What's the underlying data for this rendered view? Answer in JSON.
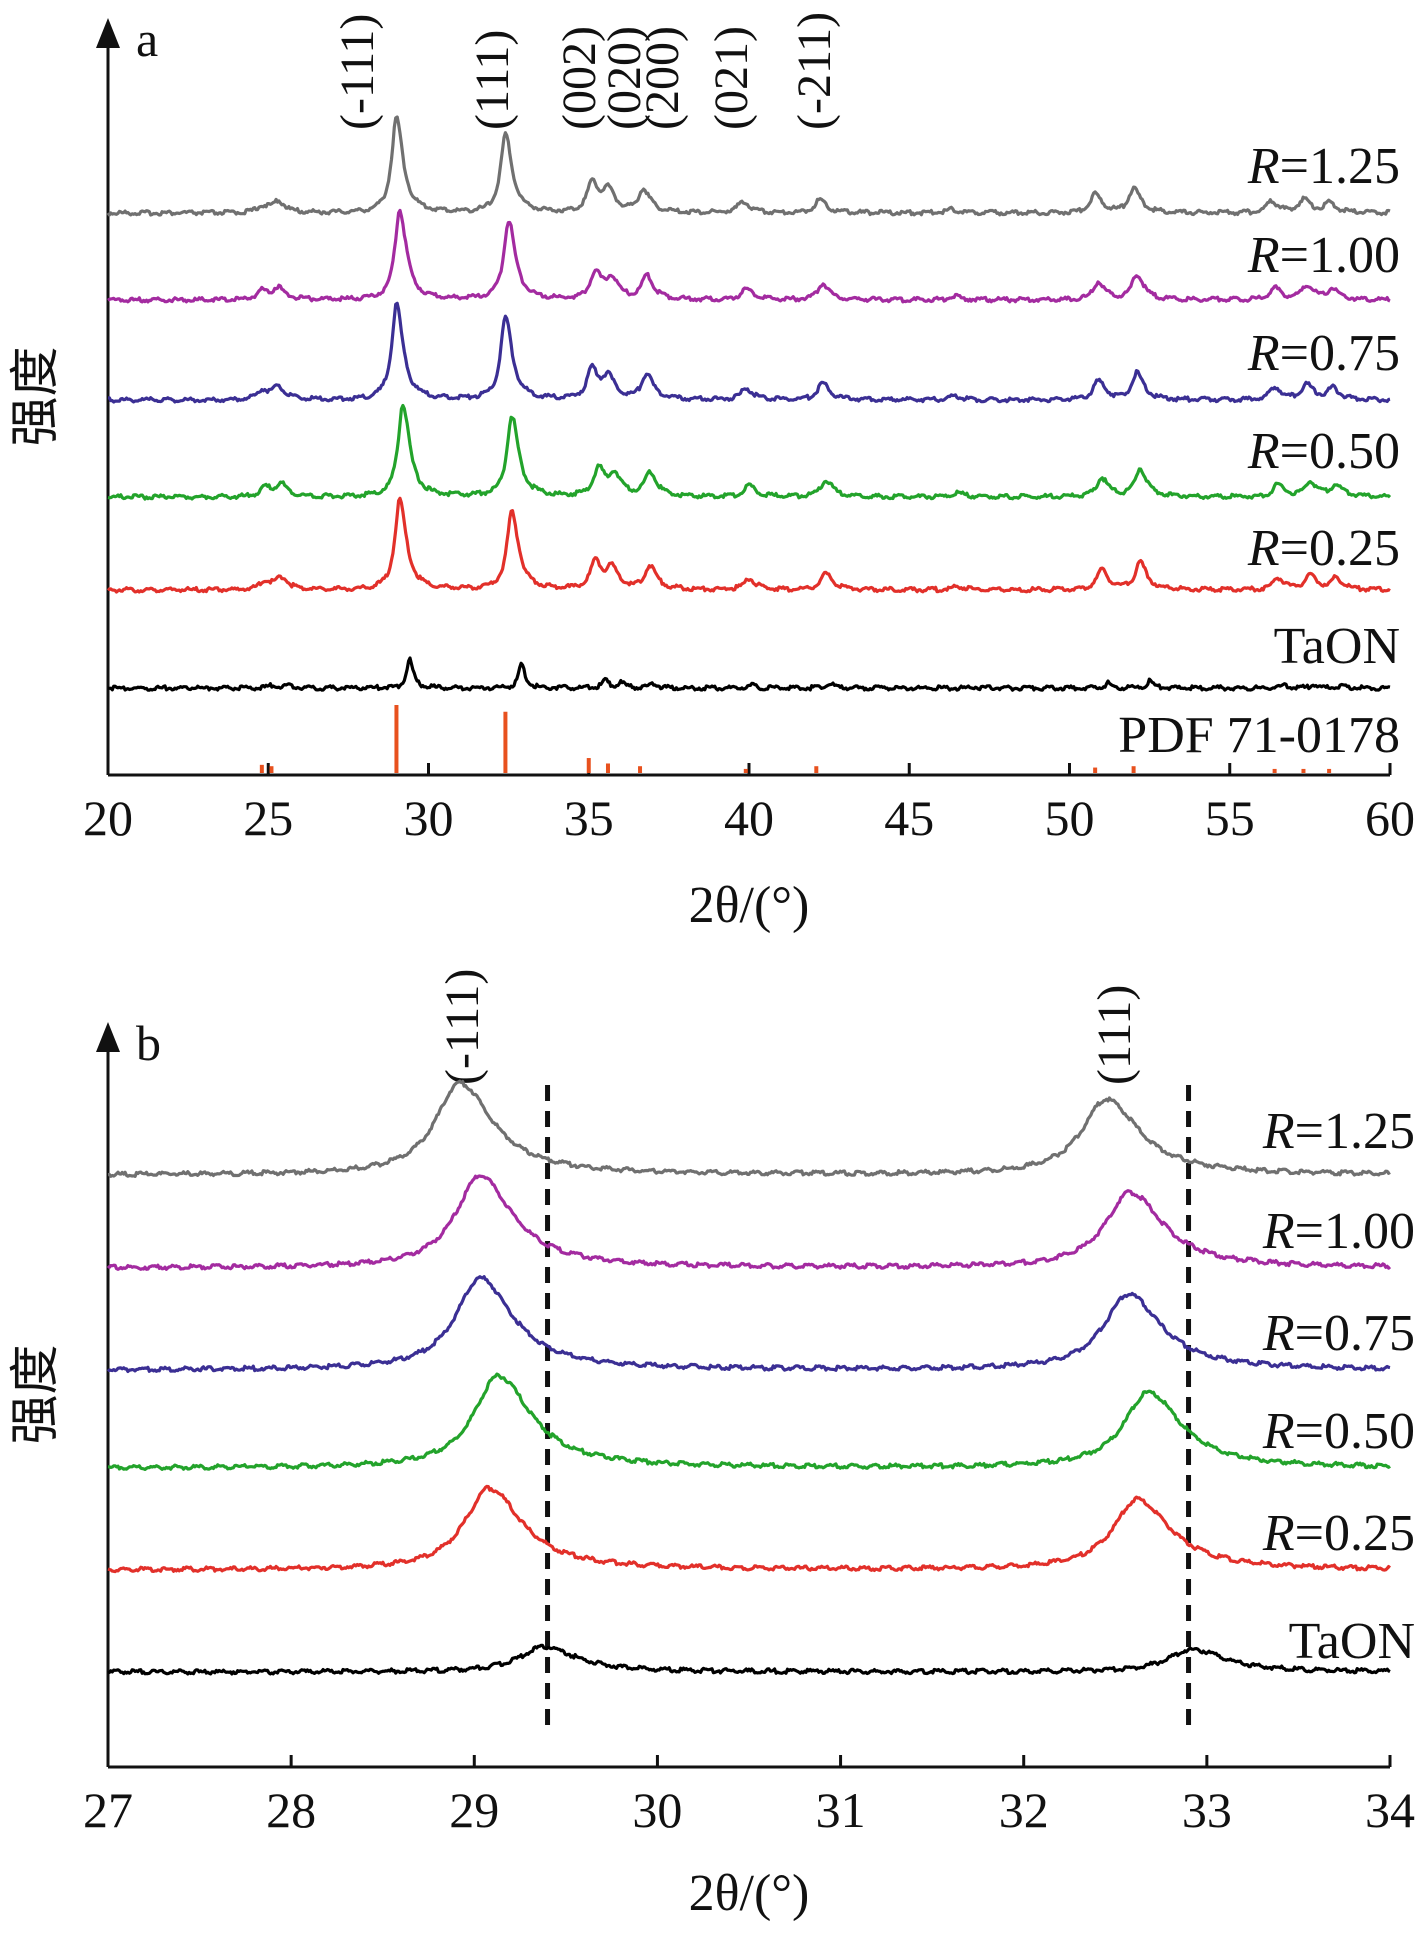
{
  "chart_data": [
    {
      "type": "line",
      "panel_label": "a",
      "xlabel": "2θ/(°)",
      "ylabel": "强度",
      "xlim": [
        20,
        60
      ],
      "xticks": [
        20,
        25,
        30,
        35,
        40,
        45,
        50,
        55,
        60
      ],
      "xtick_labels": [
        "20",
        "25",
        "30",
        "35",
        "40",
        "45",
        "50",
        "55",
        "60"
      ],
      "grid": false,
      "reflections": [
        {
          "label": "(-111)",
          "x": 29.0
        },
        {
          "label": "(111)",
          "x": 32.4
        },
        {
          "label": "(002)",
          "x": 35.1
        },
        {
          "label": "(020)",
          "x": 35.6
        },
        {
          "label": "(200)",
          "x": 36.7
        },
        {
          "label": "(021)",
          "x": 39.9
        },
        {
          "label": "(-211)",
          "x": 42.2
        }
      ],
      "series": [
        {
          "name": "R=1.25",
          "prefix": "R",
          "suffix": "=1.25",
          "color": "#707070",
          "peaks": [
            [
              24.8,
              0.07
            ],
            [
              25.3,
              0.12
            ],
            [
              29.0,
              1.0
            ],
            [
              32.4,
              0.82
            ],
            [
              35.1,
              0.32
            ],
            [
              35.6,
              0.22
            ],
            [
              36.7,
              0.24
            ],
            [
              39.8,
              0.12
            ],
            [
              42.2,
              0.14
            ],
            [
              46.3,
              0.04
            ],
            [
              50.8,
              0.2
            ],
            [
              52.0,
              0.26
            ],
            [
              56.3,
              0.12
            ],
            [
              57.3,
              0.14
            ],
            [
              58.1,
              0.1
            ]
          ]
        },
        {
          "name": "R=1.00",
          "prefix": "R",
          "suffix": "=1.00",
          "color": "#a32ba0",
          "peaks": [
            [
              24.8,
              0.1
            ],
            [
              25.3,
              0.13
            ],
            [
              29.1,
              1.0
            ],
            [
              32.5,
              0.88
            ],
            [
              35.2,
              0.3
            ],
            [
              35.7,
              0.22
            ],
            [
              36.8,
              0.26
            ],
            [
              39.9,
              0.12
            ],
            [
              42.3,
              0.18
            ],
            [
              46.4,
              0.04
            ],
            [
              50.9,
              0.2
            ],
            [
              52.1,
              0.28
            ],
            [
              56.4,
              0.13
            ],
            [
              57.4,
              0.16
            ],
            [
              58.2,
              0.12
            ]
          ]
        },
        {
          "name": "R=0.75",
          "prefix": "R",
          "suffix": "=0.75",
          "color": "#3b2f94",
          "peaks": [
            [
              24.8,
              0.1
            ],
            [
              25.3,
              0.13
            ],
            [
              29.0,
              1.0
            ],
            [
              32.4,
              0.87
            ],
            [
              35.1,
              0.32
            ],
            [
              35.6,
              0.22
            ],
            [
              36.8,
              0.26
            ],
            [
              39.9,
              0.12
            ],
            [
              42.3,
              0.18
            ],
            [
              46.4,
              0.04
            ],
            [
              50.9,
              0.2
            ],
            [
              52.1,
              0.28
            ],
            [
              56.4,
              0.13
            ],
            [
              57.4,
              0.16
            ],
            [
              58.2,
              0.12
            ]
          ]
        },
        {
          "name": "R=0.50",
          "prefix": "R",
          "suffix": "=0.50",
          "color": "#23a32b",
          "peaks": [
            [
              24.9,
              0.1
            ],
            [
              25.4,
              0.13
            ],
            [
              29.2,
              1.0
            ],
            [
              32.6,
              0.87
            ],
            [
              35.3,
              0.3
            ],
            [
              35.8,
              0.22
            ],
            [
              36.9,
              0.26
            ],
            [
              40.0,
              0.12
            ],
            [
              42.4,
              0.18
            ],
            [
              46.5,
              0.04
            ],
            [
              51.0,
              0.2
            ],
            [
              52.2,
              0.3
            ],
            [
              56.5,
              0.13
            ],
            [
              57.5,
              0.16
            ],
            [
              58.3,
              0.12
            ]
          ]
        },
        {
          "name": "R=0.25",
          "prefix": "R",
          "suffix": "=0.25",
          "color": "#e2302a",
          "peaks": [
            [
              24.9,
              0.1
            ],
            [
              25.4,
              0.13
            ],
            [
              29.1,
              1.0
            ],
            [
              32.6,
              0.87
            ],
            [
              35.2,
              0.3
            ],
            [
              35.7,
              0.22
            ],
            [
              36.9,
              0.26
            ],
            [
              40.0,
              0.12
            ],
            [
              42.4,
              0.18
            ],
            [
              46.5,
              0.04
            ],
            [
              51.0,
              0.22
            ],
            [
              52.2,
              0.3
            ],
            [
              56.5,
              0.13
            ],
            [
              57.5,
              0.16
            ],
            [
              58.3,
              0.12
            ]
          ]
        },
        {
          "name": "TaON",
          "prefix": "",
          "suffix": "TaON",
          "color": "#000000",
          "peaks": [
            [
              25.1,
              0.05
            ],
            [
              25.6,
              0.06
            ],
            [
              29.4,
              0.6
            ],
            [
              32.9,
              0.48
            ],
            [
              35.5,
              0.16
            ],
            [
              36.0,
              0.1
            ],
            [
              37.0,
              0.1
            ],
            [
              40.1,
              0.05
            ],
            [
              42.5,
              0.1
            ],
            [
              47.0,
              0.03
            ],
            [
              51.2,
              0.1
            ],
            [
              52.5,
              0.14
            ],
            [
              56.7,
              0.06
            ],
            [
              57.6,
              0.07
            ],
            [
              58.5,
              0.05
            ]
          ]
        }
      ],
      "reference": {
        "name": "PDF 71-0178",
        "color": "#e8511e",
        "lines": [
          [
            24.8,
            0.12
          ],
          [
            25.1,
            0.1
          ],
          [
            29.0,
            1.0
          ],
          [
            32.4,
            0.9
          ],
          [
            35.0,
            0.22
          ],
          [
            35.6,
            0.14
          ],
          [
            36.6,
            0.1
          ],
          [
            39.9,
            0.06
          ],
          [
            42.1,
            0.1
          ],
          [
            50.8,
            0.08
          ],
          [
            52.0,
            0.1
          ],
          [
            56.4,
            0.06
          ],
          [
            57.3,
            0.06
          ],
          [
            58.1,
            0.06
          ]
        ]
      }
    },
    {
      "type": "line",
      "panel_label": "b",
      "xlabel": "2θ/(°)",
      "ylabel": "强度",
      "xlim": [
        27,
        34
      ],
      "xticks": [
        27,
        28,
        29,
        30,
        31,
        32,
        33,
        34
      ],
      "xtick_labels": [
        "27",
        "28",
        "29",
        "30",
        "31",
        "32",
        "33",
        "34"
      ],
      "grid": false,
      "reflections": [
        {
          "label": "(-111)",
          "x": 28.9
        },
        {
          "label": "(111)",
          "x": 32.5
        }
      ],
      "reference_dashed_lines_x": [
        29.4,
        32.9
      ],
      "series": [
        {
          "name": "R=1.25",
          "prefix": "R",
          "suffix": "=1.25",
          "color": "#707070",
          "peaks": [
            [
              28.92,
              1.0
            ],
            [
              32.45,
              0.82
            ]
          ]
        },
        {
          "name": "R=1.00",
          "prefix": "R",
          "suffix": "=1.00",
          "color": "#a32ba0",
          "peaks": [
            [
              29.03,
              1.0
            ],
            [
              32.58,
              0.82
            ]
          ]
        },
        {
          "name": "R=0.75",
          "prefix": "R",
          "suffix": "=0.75",
          "color": "#3b2f94",
          "peaks": [
            [
              29.03,
              1.0
            ],
            [
              32.57,
              0.82
            ]
          ]
        },
        {
          "name": "R=0.50",
          "prefix": "R",
          "suffix": "=0.50",
          "color": "#23a32b",
          "peaks": [
            [
              29.13,
              1.0
            ],
            [
              32.68,
              0.82
            ]
          ]
        },
        {
          "name": "R=0.25",
          "prefix": "R",
          "suffix": "=0.25",
          "color": "#e2302a",
          "peaks": [
            [
              29.08,
              0.95
            ],
            [
              32.62,
              0.82
            ]
          ]
        },
        {
          "name": "TaON",
          "prefix": "",
          "suffix": "TaON",
          "color": "#000000",
          "peaks": [
            [
              29.38,
              0.5
            ],
            [
              32.92,
              0.45
            ]
          ]
        }
      ]
    }
  ]
}
